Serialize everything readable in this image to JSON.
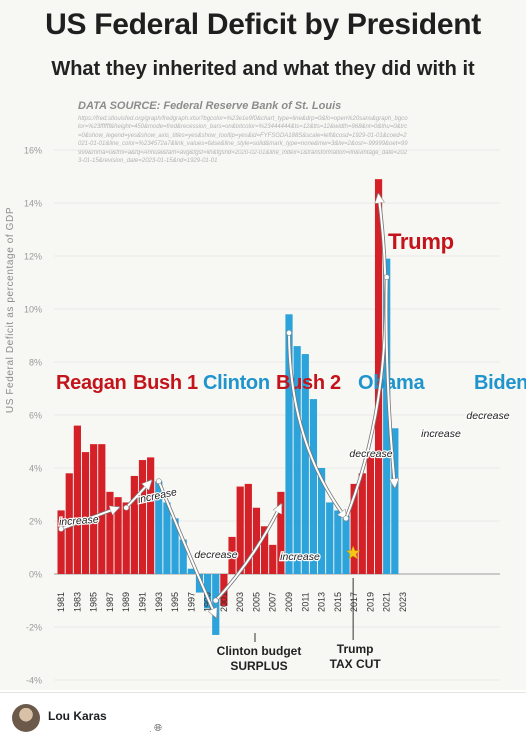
{
  "header": {
    "title": "US Federal Deficit by President",
    "subtitle": "What they inherited and what they did with it",
    "source": "DATA SOURCE: Federal Reserve Bank of St. Louis",
    "source_url": "https://fred.stlouisfed.org/graph/fredgraph.xlsx?bgcolor=%23e1e9f0&chart_type=line&drp=0&fo=open%20sans&graph_bgcolor=%23ffffff&height=450&mode=fred&recession_bars=on&txtcolor=%23444444&ts=12&tts=12&width=968&nt=0&thu=0&trc=0&show_legend=yes&show_axis_titles=yes&show_tooltip=yes&id=FYFSGDA188S&scale=left&cosd=1929-01-01&coed=2021-01-01&line_color=%234572a7&link_values=false&line_style=solid&mark_type=none&mw=3&lw=2&ost=-99999&oet=99999&mma=0&fml=a&fq=Annual&fam=avg&fgst=lin&fgsnd=2020-02-01&line_index=1&transformation=lin&vintage_date=2023-01-15&revision_date=2023-01-15&nd=1929-01-01"
  },
  "chart_data": {
    "type": "bar",
    "title": "US Federal Deficit by President",
    "subtitle": "What they inherited and what they did with it",
    "ylabel": "US Federal Deficit as percentage of GDP",
    "xlabel": "",
    "ylim": [
      -4,
      16
    ],
    "yticks": [
      "16%",
      "14%",
      "12%",
      "10%",
      "8%",
      "6%",
      "4%",
      "2%",
      "0%",
      "-2%",
      "-4%"
    ],
    "ytick_values": [
      16,
      14,
      12,
      10,
      8,
      6,
      4,
      2,
      0,
      -2,
      -4
    ],
    "xtick_labels": [
      "1981",
      "1983",
      "1985",
      "1987",
      "1989",
      "1991",
      "1993",
      "1995",
      "1997",
      "1999",
      "2001",
      "2003",
      "2005",
      "2007",
      "2009",
      "2011",
      "2013",
      "2015",
      "2017",
      "2019",
      "2021",
      "2023"
    ],
    "grid": true,
    "colors": {
      "Republican": "#d42027",
      "Democrat": "#2ca3da",
      "label_red": "#c4141b",
      "label_blue": "#1f94cd"
    },
    "years": [
      1981,
      1982,
      1983,
      1984,
      1985,
      1986,
      1987,
      1988,
      1989,
      1990,
      1991,
      1992,
      1993,
      1994,
      1995,
      1996,
      1997,
      1998,
      1999,
      2000,
      2001,
      2002,
      2003,
      2004,
      2005,
      2006,
      2007,
      2008,
      2009,
      2010,
      2011,
      2012,
      2013,
      2014,
      2015,
      2016,
      2017,
      2018,
      2019,
      2020,
      2021,
      2022
    ],
    "values": [
      2.4,
      3.8,
      5.6,
      4.6,
      4.9,
      4.9,
      3.1,
      2.9,
      2.7,
      3.7,
      4.3,
      4.4,
      3.5,
      2.7,
      2.1,
      1.3,
      0.2,
      -0.7,
      -1.3,
      -2.3,
      -1.2,
      1.4,
      3.3,
      3.4,
      2.5,
      1.8,
      1.1,
      3.1,
      9.8,
      8.6,
      8.3,
      6.6,
      4.0,
      2.7,
      2.4,
      2.2,
      3.4,
      3.8,
      4.6,
      14.9,
      11.9,
      5.5
    ],
    "party": [
      "R",
      "R",
      "R",
      "R",
      "R",
      "R",
      "R",
      "R",
      "R",
      "R",
      "R",
      "R",
      "D",
      "D",
      "D",
      "D",
      "D",
      "D",
      "D",
      "D",
      "R",
      "R",
      "R",
      "R",
      "R",
      "R",
      "R",
      "R",
      "D",
      "D",
      "D",
      "D",
      "D",
      "D",
      "D",
      "D",
      "R",
      "R",
      "R",
      "R",
      "D",
      "D"
    ],
    "presidents": [
      {
        "name": "Reagan",
        "party": "R"
      },
      {
        "name": "Bush 1",
        "party": "R"
      },
      {
        "name": "Clinton",
        "party": "D"
      },
      {
        "name": "Bush 2",
        "party": "R"
      },
      {
        "name": "Obama",
        "party": "D"
      },
      {
        "name": "Trump",
        "party": "R"
      },
      {
        "name": "Biden",
        "party": "D"
      }
    ],
    "annotations": [
      {
        "text": "increase",
        "period": "Reagan"
      },
      {
        "text": "increase",
        "period": "Bush 1"
      },
      {
        "text": "decrease",
        "period": "Clinton"
      },
      {
        "text": "increase",
        "period": "Bush 2"
      },
      {
        "text": "decrease",
        "period": "Obama"
      },
      {
        "text": "increase",
        "period": "Trump"
      },
      {
        "text": "decrease",
        "period": "Biden"
      },
      {
        "text": "Clinton budget",
        "text2": "SURPLUS"
      },
      {
        "text": "Trump",
        "text2": "TAX CUT"
      }
    ]
  },
  "footer": {
    "author": "Lou Karas",
    "separator": "·",
    "globe_icon": "globe-icon"
  }
}
